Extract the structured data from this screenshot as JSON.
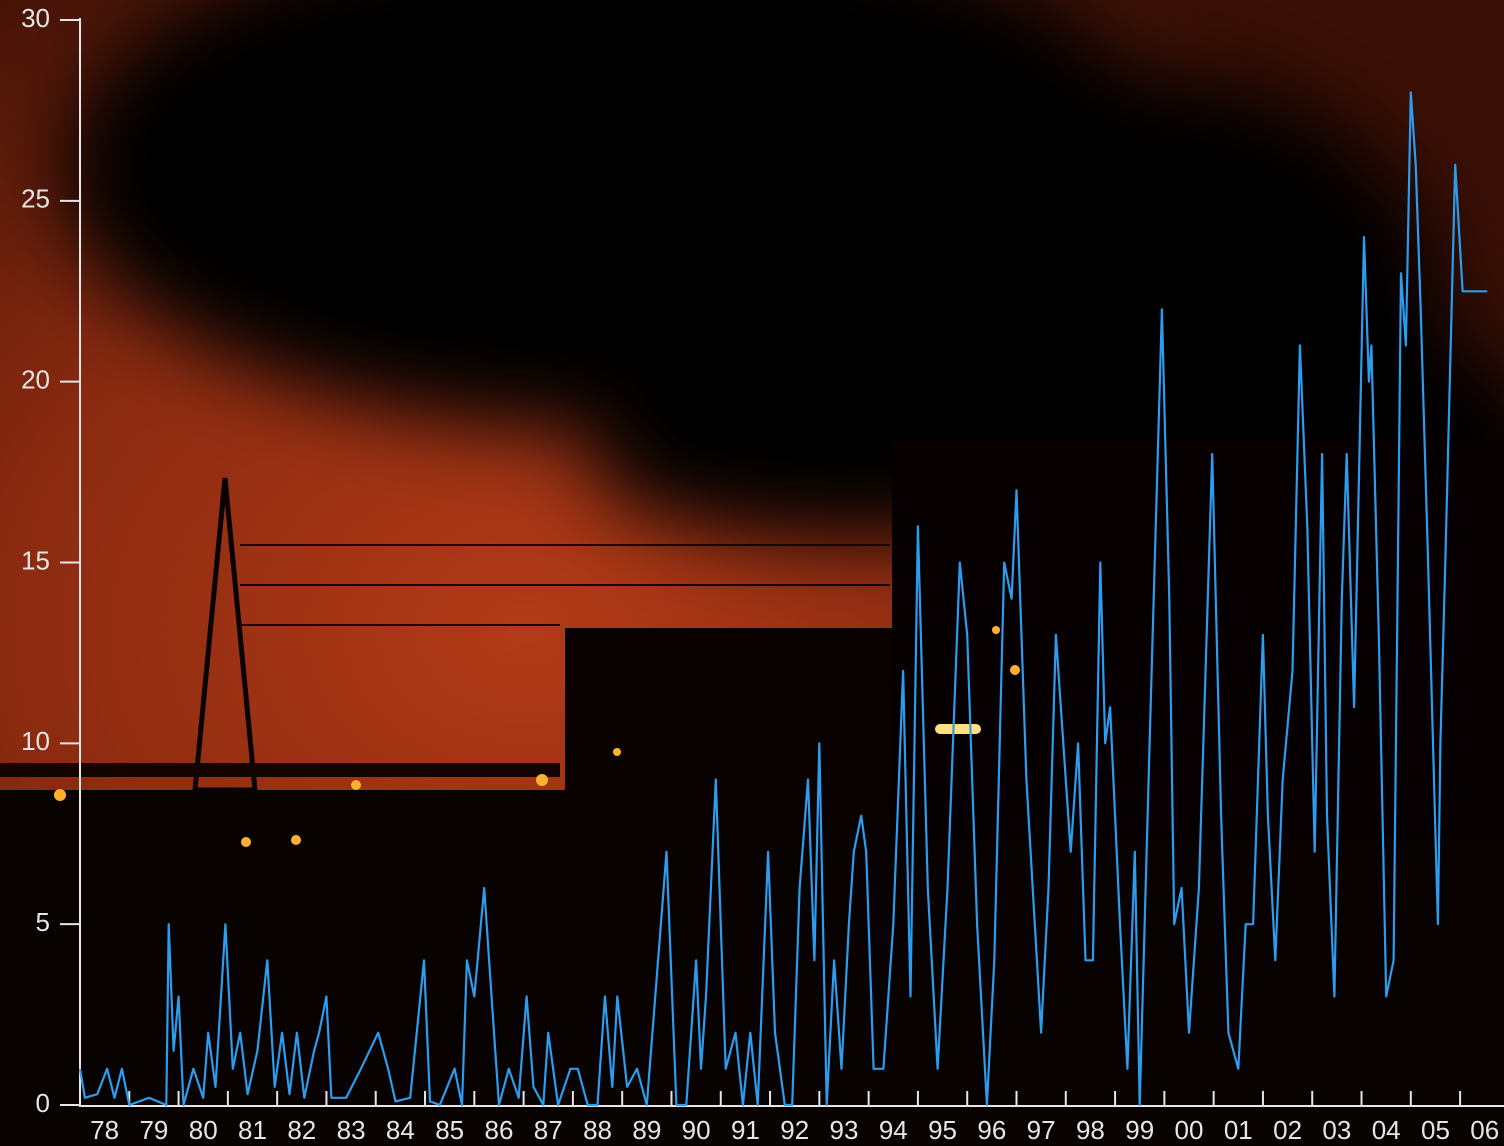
{
  "chart_data": {
    "type": "line",
    "x": [
      1978.0,
      1978.1,
      1978.35,
      1978.55,
      1978.7,
      1978.85,
      1979.0,
      1979.4,
      1979.75,
      1979.8,
      1979.9,
      1980.0,
      1980.1,
      1980.3,
      1980.5,
      1980.6,
      1980.75,
      1980.95,
      1981.1,
      1981.25,
      1981.4,
      1981.6,
      1981.8,
      1981.95,
      1982.1,
      1982.25,
      1982.4,
      1982.55,
      1982.75,
      1982.85,
      1983.0,
      1983.1,
      1983.4,
      1983.7,
      1984.05,
      1984.25,
      1984.4,
      1984.7,
      1984.98,
      1985.1,
      1985.3,
      1985.6,
      1985.75,
      1985.85,
      1986.0,
      1986.2,
      1986.4,
      1986.5,
      1986.7,
      1986.9,
      1987.06,
      1987.2,
      1987.4,
      1987.5,
      1987.7,
      1987.95,
      1988.1,
      1988.3,
      1988.5,
      1988.65,
      1988.8,
      1988.9,
      1989.1,
      1989.3,
      1989.5,
      1989.9,
      1990.1,
      1990.3,
      1990.5,
      1990.6,
      1990.7,
      1990.9,
      1991.1,
      1991.3,
      1991.45,
      1991.6,
      1991.75,
      1991.96,
      1992.1,
      1992.3,
      1992.45,
      1992.6,
      1992.77,
      1992.9,
      1993.0,
      1993.15,
      1993.3,
      1993.45,
      1993.6,
      1993.7,
      1993.85,
      1993.95,
      1994.1,
      1994.3,
      1994.5,
      1994.7,
      1994.85,
      1995.0,
      1995.2,
      1995.4,
      1995.6,
      1995.85,
      1996.0,
      1996.2,
      1996.4,
      1996.55,
      1996.75,
      1996.9,
      1997.0,
      1997.2,
      1997.5,
      1997.65,
      1997.8,
      1997.95,
      1998.1,
      1998.25,
      1998.4,
      1998.55,
      1998.7,
      1998.8,
      1998.9,
      1999.1,
      1999.25,
      1999.4,
      1999.5,
      1999.7,
      1999.95,
      2000.1,
      2000.2,
      2000.35,
      2000.5,
      2000.7,
      2000.97,
      2001.15,
      2001.3,
      2001.5,
      2001.65,
      2001.8,
      2002.0,
      2002.1,
      2002.25,
      2002.4,
      2002.6,
      2002.75,
      2002.9,
      2003.05,
      2003.2,
      2003.3,
      2003.45,
      2003.6,
      2003.7,
      2003.85,
      2004.05,
      2004.15,
      2004.2,
      2004.35,
      2004.5,
      2004.65,
      2004.8,
      2004.9,
      2005.0,
      2005.1,
      2005.2,
      2005.35,
      2005.55,
      2005.6,
      2005.7,
      2005.9,
      2006.05,
      2006.55
    ],
    "values": [
      1,
      0.2,
      0.3,
      1,
      0.2,
      1,
      0,
      0.2,
      0,
      5,
      1.5,
      3,
      0,
      1,
      0.2,
      2,
      0.5,
      5,
      1,
      2,
      0.3,
      1.5,
      4,
      0.5,
      2,
      0.3,
      2,
      0.2,
      1.5,
      2,
      3,
      0.2,
      0.2,
      1,
      2,
      1,
      0.1,
      0.2,
      4,
      0.1,
      0,
      1,
      0,
      4,
      3,
      6,
      2,
      0,
      1,
      0.2,
      3,
      0.5,
      0,
      2,
      0,
      1,
      1,
      0,
      0,
      3,
      0.5,
      3,
      0.5,
      1,
      0,
      7,
      0,
      0,
      4,
      1,
      3,
      9,
      1,
      2,
      0,
      2,
      0,
      7,
      2,
      0,
      0,
      6,
      9,
      4,
      10,
      0,
      4,
      1,
      5,
      7,
      8,
      7,
      1,
      1,
      5,
      12,
      3,
      16,
      6,
      1,
      6,
      15,
      13,
      5,
      0,
      4,
      15,
      14,
      17,
      9,
      2,
      6,
      13,
      10,
      7,
      10,
      4,
      4,
      15,
      10,
      11,
      5,
      1,
      7,
      0,
      10,
      22,
      14,
      5,
      6,
      2,
      6,
      18,
      8,
      2,
      1,
      5,
      5,
      13,
      8,
      4,
      9,
      12,
      21,
      16,
      7,
      18,
      8,
      3,
      14,
      18,
      11,
      24,
      20,
      21,
      13,
      3,
      4,
      23,
      21,
      28,
      26,
      22,
      15,
      5,
      10,
      15,
      26,
      22.5,
      22.5
    ],
    "color": "#2b9cf0",
    "xlim": [
      1978,
      2006.85
    ],
    "xticks": [
      {
        "value": 1978,
        "label": "78"
      },
      {
        "value": 1979,
        "label": "79"
      },
      {
        "value": 1980,
        "label": "80"
      },
      {
        "value": 1981,
        "label": "81"
      },
      {
        "value": 1982,
        "label": "82"
      },
      {
        "value": 1983,
        "label": "83"
      },
      {
        "value": 1984,
        "label": "84"
      },
      {
        "value": 1985,
        "label": "85"
      },
      {
        "value": 1986,
        "label": "86"
      },
      {
        "value": 1987,
        "label": "87"
      },
      {
        "value": 1988,
        "label": "88"
      },
      {
        "value": 1989,
        "label": "89"
      },
      {
        "value": 1990,
        "label": "90"
      },
      {
        "value": 1991,
        "label": "91"
      },
      {
        "value": 1992,
        "label": "92"
      },
      {
        "value": 1993,
        "label": "93"
      },
      {
        "value": 1994,
        "label": "94"
      },
      {
        "value": 1995,
        "label": "95"
      },
      {
        "value": 1996,
        "label": "96"
      },
      {
        "value": 1997,
        "label": "97"
      },
      {
        "value": 1998,
        "label": "98"
      },
      {
        "value": 1999,
        "label": "99"
      },
      {
        "value": 2000,
        "label": "00"
      },
      {
        "value": 2001,
        "label": "01"
      },
      {
        "value": 2002,
        "label": "02"
      },
      {
        "value": 2003,
        "label": "03"
      },
      {
        "value": 2004,
        "label": "04"
      },
      {
        "value": 2005,
        "label": "05"
      },
      {
        "value": 2006,
        "label": "06"
      }
    ],
    "ylim": [
      0,
      30
    ],
    "yticks": [
      0,
      5,
      10,
      15,
      20,
      25,
      30
    ]
  }
}
